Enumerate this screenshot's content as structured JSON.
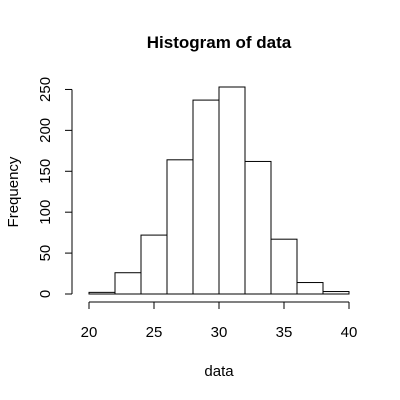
{
  "chart_data": {
    "type": "bar",
    "title": "Histogram of data",
    "xlabel": "data",
    "ylabel": "Frequency",
    "bin_edges": [
      20,
      22,
      24,
      26,
      28,
      30,
      32,
      34,
      36,
      38,
      40
    ],
    "values": [
      2,
      26,
      72,
      164,
      237,
      253,
      162,
      67,
      14,
      3
    ],
    "xlim": [
      20,
      40
    ],
    "ylim": [
      0,
      253
    ],
    "x_ticks": [
      20,
      25,
      30,
      35,
      40
    ],
    "y_ticks": [
      0,
      50,
      100,
      150,
      200,
      250
    ],
    "grid": false,
    "legend": "none",
    "bar_fill": "#ffffff",
    "bar_stroke": "#000000"
  }
}
